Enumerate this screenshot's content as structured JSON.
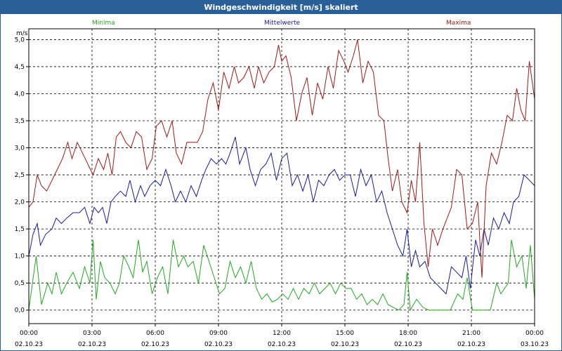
{
  "window": {
    "title": "Windgeschwindigkeit [m/s] skaliert"
  },
  "colors": {
    "minima": "#22aa22",
    "mittelwerte": "#1a1aa0",
    "maxima": "#a01818",
    "title_bar": "#2a6099"
  },
  "chart_data": {
    "type": "line",
    "title": "Windgeschwindigkeit [m/s] skaliert",
    "ylabel": "m/s",
    "xlabel": "",
    "ylim": [
      -0.25,
      5.2
    ],
    "xlim": [
      0,
      24
    ],
    "y_ticks": [
      "0,0",
      "0,5",
      "1,0",
      "1,5",
      "2,0",
      "2,5",
      "3,0",
      "3,5",
      "4,0",
      "4,5",
      "5,0"
    ],
    "x_ticks": [
      {
        "time": "00:00",
        "date": "02.10.23"
      },
      {
        "time": "03:00",
        "date": "02.10.23"
      },
      {
        "time": "06:00",
        "date": "02.10.23"
      },
      {
        "time": "09:00",
        "date": "02.10.23"
      },
      {
        "time": "12:00",
        "date": "02.10.23"
      },
      {
        "time": "15:00",
        "date": "02.10.23"
      },
      {
        "time": "18:00",
        "date": "02.10.23"
      },
      {
        "time": "21:00",
        "date": "02.10.23"
      },
      {
        "time": "00:00",
        "date": "03.10.23"
      }
    ],
    "grid": true,
    "legend": "top",
    "series": [
      {
        "name": "Minima",
        "color": "#22aa22",
        "points": [
          [
            0,
            0
          ],
          [
            0.35,
            1.0
          ],
          [
            0.6,
            0.1
          ],
          [
            0.9,
            0.5
          ],
          [
            1.1,
            0.3
          ],
          [
            1.3,
            0.7
          ],
          [
            1.55,
            0.3
          ],
          [
            1.8,
            0.5
          ],
          [
            2.1,
            0.7
          ],
          [
            2.4,
            0.4
          ],
          [
            2.65,
            0.8
          ],
          [
            2.9,
            0.5
          ],
          [
            3.05,
            1.3
          ],
          [
            3.2,
            0.2
          ],
          [
            3.4,
            0.9
          ],
          [
            3.6,
            0.6
          ],
          [
            3.85,
            0.5
          ],
          [
            4.1,
            0.3
          ],
          [
            4.3,
            0.5
          ],
          [
            4.5,
            1.0
          ],
          [
            4.75,
            0.8
          ],
          [
            4.95,
            0.6
          ],
          [
            5.2,
            1.3
          ],
          [
            5.4,
            0.7
          ],
          [
            5.6,
            0.9
          ],
          [
            5.85,
            0.3
          ],
          [
            6.1,
            0.6
          ],
          [
            6.35,
            0.8
          ],
          [
            6.6,
            0.3
          ],
          [
            6.85,
            1.3
          ],
          [
            7.1,
            0.8
          ],
          [
            7.35,
            1.0
          ],
          [
            7.55,
            0.8
          ],
          [
            7.8,
            0.9
          ],
          [
            8.05,
            0.5
          ],
          [
            8.3,
            1.2
          ],
          [
            8.55,
            0.9
          ],
          [
            8.8,
            0.6
          ],
          [
            9.05,
            0.3
          ],
          [
            9.3,
            0.4
          ],
          [
            9.55,
            0.9
          ],
          [
            9.8,
            0.6
          ],
          [
            10.05,
            0.8
          ],
          [
            10.3,
            0.5
          ],
          [
            10.55,
            0.9
          ],
          [
            10.8,
            0.4
          ],
          [
            11.05,
            0.2
          ],
          [
            11.3,
            0.3
          ],
          [
            11.55,
            0.15
          ],
          [
            11.8,
            0.2
          ],
          [
            12.05,
            0.3
          ],
          [
            12.3,
            0.2
          ],
          [
            12.55,
            0.4
          ],
          [
            12.8,
            0.2
          ],
          [
            13.05,
            0.4
          ],
          [
            13.3,
            0.3
          ],
          [
            13.55,
            0.5
          ],
          [
            13.8,
            0.3
          ],
          [
            14.05,
            0.4
          ],
          [
            14.3,
            0.5
          ],
          [
            14.55,
            0.3
          ],
          [
            14.8,
            0.5
          ],
          [
            15.05,
            0.4
          ],
          [
            15.3,
            0.4
          ],
          [
            15.55,
            0.2
          ],
          [
            15.8,
            0.3
          ],
          [
            16.05,
            0.1
          ],
          [
            16.3,
            0.2
          ],
          [
            16.55,
            0.1
          ],
          [
            16.8,
            0.3
          ],
          [
            17.05,
            0.1
          ],
          [
            17.3,
            0.05
          ],
          [
            17.55,
            0.0
          ],
          [
            17.8,
            0.1
          ],
          [
            17.95,
            0.7
          ],
          [
            18.1,
            0.0
          ],
          [
            18.4,
            0.2
          ],
          [
            18.7,
            0.05
          ],
          [
            19.0,
            0.0
          ],
          [
            19.5,
            0.0
          ],
          [
            20.0,
            0.0
          ],
          [
            20.35,
            0.3
          ],
          [
            20.6,
            0.2
          ],
          [
            20.8,
            0.6
          ],
          [
            21.05,
            0.0
          ],
          [
            21.5,
            0.0
          ],
          [
            21.9,
            0.0
          ],
          [
            22.2,
            0.5
          ],
          [
            22.4,
            0.3
          ],
          [
            22.75,
            0.5
          ],
          [
            22.9,
            1.3
          ],
          [
            23.15,
            0.8
          ],
          [
            23.4,
            1.0
          ],
          [
            23.6,
            0.4
          ],
          [
            23.8,
            1.2
          ],
          [
            24,
            0.2
          ]
        ]
      },
      {
        "name": "Mittelwerte",
        "color": "#1a1aa0",
        "points": [
          [
            0,
            1.0
          ],
          [
            0.2,
            1.4
          ],
          [
            0.4,
            1.6
          ],
          [
            0.55,
            1.2
          ],
          [
            0.8,
            1.4
          ],
          [
            1.1,
            1.5
          ],
          [
            1.3,
            1.7
          ],
          [
            1.55,
            1.6
          ],
          [
            1.8,
            1.7
          ],
          [
            2.1,
            1.8
          ],
          [
            2.4,
            1.8
          ],
          [
            2.65,
            1.9
          ],
          [
            2.9,
            1.6
          ],
          [
            3.1,
            1.9
          ],
          [
            3.3,
            1.8
          ],
          [
            3.5,
            1.9
          ],
          [
            3.7,
            1.6
          ],
          [
            3.9,
            2.0
          ],
          [
            4.1,
            2.1
          ],
          [
            4.35,
            2.2
          ],
          [
            4.6,
            2.1
          ],
          [
            4.8,
            2.4
          ],
          [
            5.05,
            2.0
          ],
          [
            5.3,
            2.3
          ],
          [
            5.5,
            2.1
          ],
          [
            5.75,
            2.3
          ],
          [
            6.0,
            2.4
          ],
          [
            6.25,
            2.3
          ],
          [
            6.5,
            2.6
          ],
          [
            6.75,
            2.3
          ],
          [
            6.95,
            2.0
          ],
          [
            7.2,
            2.2
          ],
          [
            7.45,
            2.0
          ],
          [
            7.7,
            2.3
          ],
          [
            7.95,
            2.1
          ],
          [
            8.2,
            2.4
          ],
          [
            8.4,
            2.6
          ],
          [
            8.65,
            2.8
          ],
          [
            8.9,
            2.7
          ],
          [
            9.15,
            2.8
          ],
          [
            9.35,
            2.7
          ],
          [
            9.55,
            2.9
          ],
          [
            9.8,
            3.2
          ],
          [
            10.0,
            2.7
          ],
          [
            10.3,
            3.0
          ],
          [
            10.5,
            2.6
          ],
          [
            10.75,
            2.3
          ],
          [
            11.0,
            2.6
          ],
          [
            11.25,
            2.7
          ],
          [
            11.5,
            2.9
          ],
          [
            11.75,
            2.4
          ],
          [
            12.0,
            2.8
          ],
          [
            12.25,
            2.9
          ],
          [
            12.5,
            2.3
          ],
          [
            12.75,
            2.5
          ],
          [
            13.0,
            2.2
          ],
          [
            13.25,
            2.5
          ],
          [
            13.5,
            2.0
          ],
          [
            13.75,
            2.4
          ],
          [
            14.0,
            2.3
          ],
          [
            14.25,
            2.5
          ],
          [
            14.5,
            2.6
          ],
          [
            14.75,
            2.4
          ],
          [
            15.0,
            2.5
          ],
          [
            15.25,
            2.5
          ],
          [
            15.5,
            2.1
          ],
          [
            15.75,
            2.6
          ],
          [
            16.0,
            2.3
          ],
          [
            16.25,
            2.5
          ],
          [
            16.5,
            2.0
          ],
          [
            16.75,
            2.2
          ],
          [
            17.0,
            1.8
          ],
          [
            17.25,
            1.5
          ],
          [
            17.5,
            1.2
          ],
          [
            17.75,
            1.0
          ],
          [
            17.95,
            1.5
          ],
          [
            18.15,
            0.8
          ],
          [
            18.35,
            1.1
          ],
          [
            18.55,
            0.8
          ],
          [
            18.8,
            0.9
          ],
          [
            19.05,
            0.6
          ],
          [
            19.3,
            0.5
          ],
          [
            19.55,
            0.4
          ],
          [
            19.8,
            0.3
          ],
          [
            20.05,
            0.8
          ],
          [
            20.3,
            0.7
          ],
          [
            20.55,
            0.6
          ],
          [
            20.75,
            1.0
          ],
          [
            20.95,
            0.4
          ],
          [
            21.2,
            1.3
          ],
          [
            21.4,
            1.0
          ],
          [
            21.6,
            1.5
          ],
          [
            21.8,
            1.2
          ],
          [
            22.05,
            1.7
          ],
          [
            22.3,
            1.5
          ],
          [
            22.55,
            1.8
          ],
          [
            22.8,
            1.6
          ],
          [
            23.0,
            2.0
          ],
          [
            23.25,
            2.1
          ],
          [
            23.5,
            2.5
          ],
          [
            23.75,
            2.4
          ],
          [
            24,
            2.3
          ]
        ]
      },
      {
        "name": "Maxima",
        "color": "#a01818",
        "points": [
          [
            0,
            1.9
          ],
          [
            0.2,
            2.0
          ],
          [
            0.4,
            2.5
          ],
          [
            0.6,
            2.3
          ],
          [
            0.85,
            2.2
          ],
          [
            1.1,
            2.4
          ],
          [
            1.35,
            2.6
          ],
          [
            1.6,
            2.8
          ],
          [
            1.85,
            3.1
          ],
          [
            2.05,
            2.8
          ],
          [
            2.3,
            3.1
          ],
          [
            2.55,
            2.9
          ],
          [
            2.8,
            2.7
          ],
          [
            3.05,
            2.5
          ],
          [
            3.3,
            2.8
          ],
          [
            3.55,
            2.6
          ],
          [
            3.75,
            2.9
          ],
          [
            3.95,
            2.5
          ],
          [
            4.15,
            3.2
          ],
          [
            4.35,
            3.3
          ],
          [
            4.6,
            3.1
          ],
          [
            4.85,
            3.0
          ],
          [
            5.1,
            3.3
          ],
          [
            5.35,
            3.2
          ],
          [
            5.6,
            2.6
          ],
          [
            5.85,
            2.8
          ],
          [
            6.05,
            3.4
          ],
          [
            6.3,
            3.5
          ],
          [
            6.55,
            3.2
          ],
          [
            6.8,
            3.5
          ],
          [
            7.0,
            2.9
          ],
          [
            7.25,
            2.7
          ],
          [
            7.5,
            3.1
          ],
          [
            7.75,
            3.1
          ],
          [
            8.0,
            3.1
          ],
          [
            8.25,
            3.3
          ],
          [
            8.5,
            3.9
          ],
          [
            8.75,
            4.2
          ],
          [
            9.0,
            3.7
          ],
          [
            9.25,
            4.4
          ],
          [
            9.5,
            4.1
          ],
          [
            9.75,
            4.5
          ],
          [
            9.95,
            4.2
          ],
          [
            10.2,
            4.3
          ],
          [
            10.45,
            4.5
          ],
          [
            10.7,
            4.1
          ],
          [
            10.9,
            4.5
          ],
          [
            11.15,
            4.2
          ],
          [
            11.4,
            4.4
          ],
          [
            11.65,
            4.5
          ],
          [
            11.85,
            4.9
          ],
          [
            12.0,
            4.6
          ],
          [
            12.2,
            4.7
          ],
          [
            12.45,
            4.3
          ],
          [
            12.7,
            3.5
          ],
          [
            12.95,
            4.0
          ],
          [
            13.2,
            4.3
          ],
          [
            13.45,
            3.6
          ],
          [
            13.7,
            4.2
          ],
          [
            13.95,
            3.9
          ],
          [
            14.2,
            4.5
          ],
          [
            14.45,
            4.1
          ],
          [
            14.7,
            4.8
          ],
          [
            14.95,
            4.6
          ],
          [
            15.15,
            4.4
          ],
          [
            15.4,
            4.7
          ],
          [
            15.6,
            5.0
          ],
          [
            15.85,
            4.2
          ],
          [
            16.1,
            4.6
          ],
          [
            16.35,
            4.4
          ],
          [
            16.6,
            3.6
          ],
          [
            16.85,
            3.5
          ],
          [
            17.05,
            2.8
          ],
          [
            17.25,
            2.2
          ],
          [
            17.5,
            2.6
          ],
          [
            17.7,
            2.0
          ],
          [
            17.95,
            1.8
          ],
          [
            18.15,
            2.4
          ],
          [
            18.35,
            2.0
          ],
          [
            18.55,
            3.1
          ],
          [
            18.75,
            1.6
          ],
          [
            18.95,
            0.8
          ],
          [
            19.15,
            1.5
          ],
          [
            19.4,
            1.2
          ],
          [
            19.65,
            1.5
          ],
          [
            19.85,
            1.7
          ],
          [
            20.05,
            1.9
          ],
          [
            20.3,
            2.6
          ],
          [
            20.55,
            2.5
          ],
          [
            20.8,
            1.5
          ],
          [
            21.05,
            1.6
          ],
          [
            21.3,
            2.0
          ],
          [
            21.5,
            0.6
          ],
          [
            21.7,
            2.3
          ],
          [
            21.95,
            2.9
          ],
          [
            22.2,
            2.7
          ],
          [
            22.45,
            3.1
          ],
          [
            22.7,
            3.6
          ],
          [
            22.95,
            3.5
          ],
          [
            23.15,
            4.1
          ],
          [
            23.35,
            3.7
          ],
          [
            23.55,
            3.5
          ],
          [
            23.75,
            4.6
          ],
          [
            24,
            3.9
          ]
        ]
      }
    ]
  }
}
